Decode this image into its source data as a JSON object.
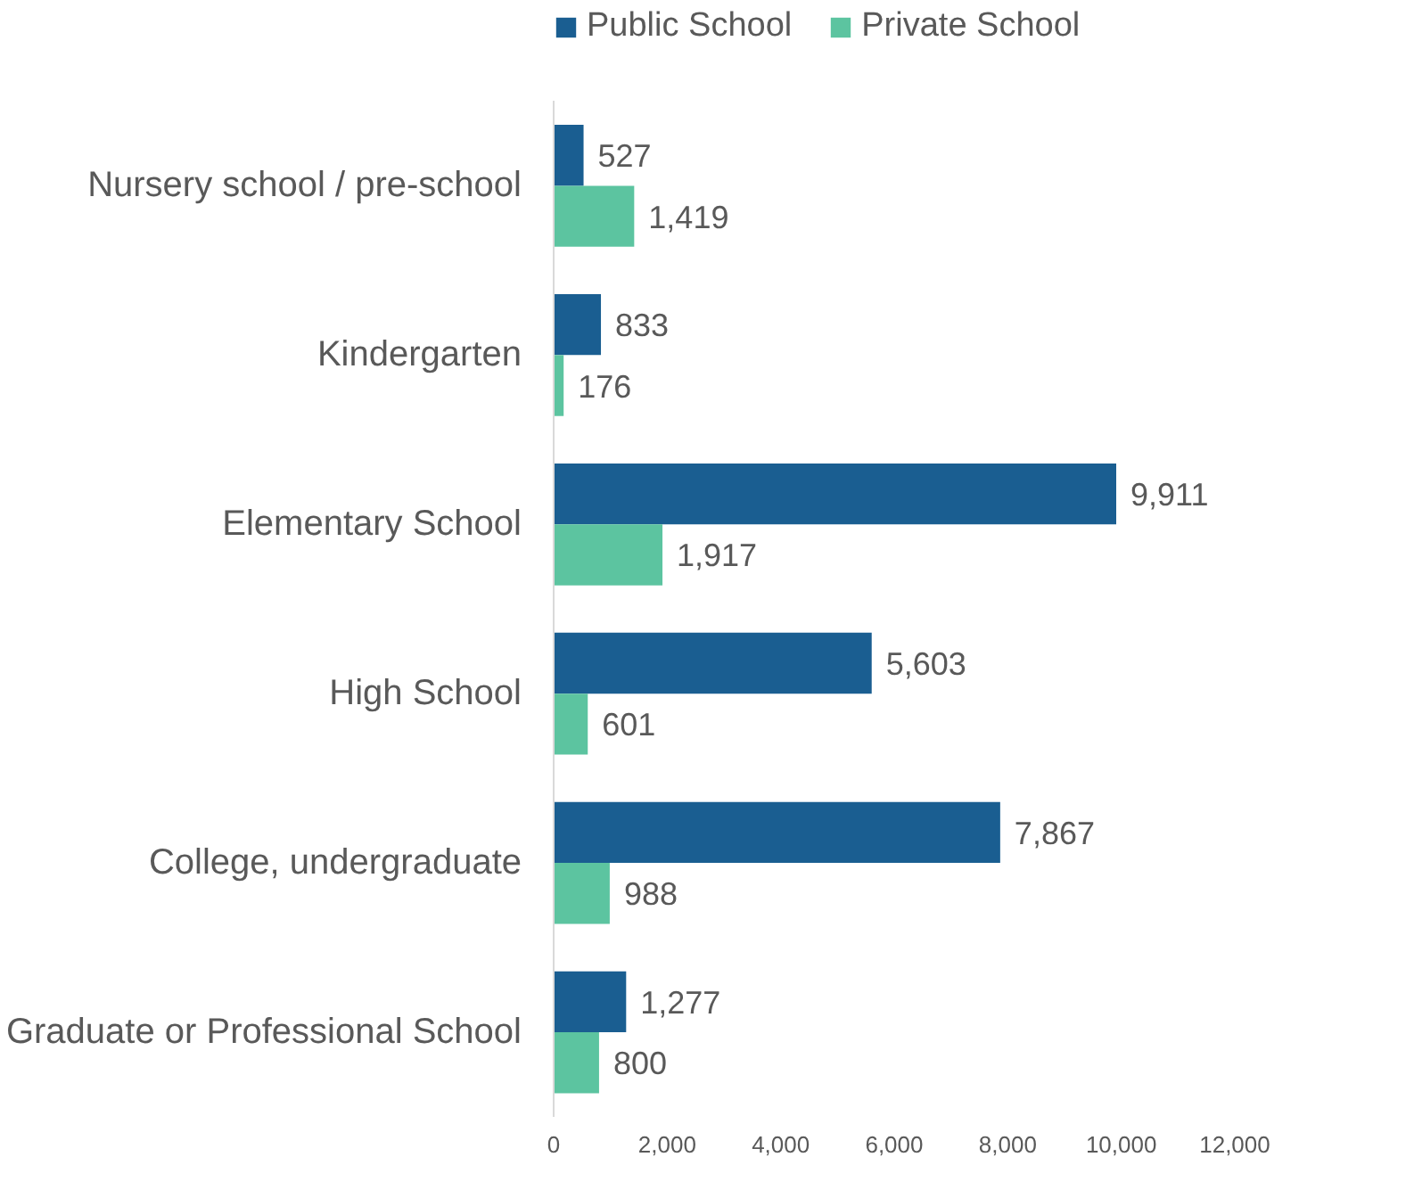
{
  "chart_data": {
    "type": "bar",
    "orientation": "horizontal",
    "categories": [
      "Nursery school / pre-school",
      "Kindergarten",
      "Elementary School",
      "High School",
      "College, undergraduate",
      "Graduate or Professional School"
    ],
    "series": [
      {
        "name": "Public School",
        "color": "#1a5e91",
        "values": [
          527,
          833,
          9911,
          5603,
          7867,
          1277
        ],
        "value_labels": [
          "527",
          "833",
          "9,911",
          "5,603",
          "7,867",
          "1,277"
        ]
      },
      {
        "name": "Private School",
        "color": "#5cc4a0",
        "values": [
          1419,
          176,
          1917,
          601,
          988,
          800
        ],
        "value_labels": [
          "1,419",
          "176",
          "1,917",
          "601",
          "988",
          "800"
        ]
      }
    ],
    "xlim": [
      0,
      12000
    ],
    "xticks": [
      0,
      {
        "value": 2000,
        "label": "2,000"
      },
      {
        "value": 4000,
        "label": "4,000"
      },
      {
        "value": 6000,
        "label": "6,000"
      },
      {
        "value": 8000,
        "label": "8,000"
      },
      {
        "value": 10000,
        "label": "10,000"
      },
      {
        "value": 12000,
        "label": "12,000"
      }
    ],
    "legend": "top",
    "grid": false
  }
}
